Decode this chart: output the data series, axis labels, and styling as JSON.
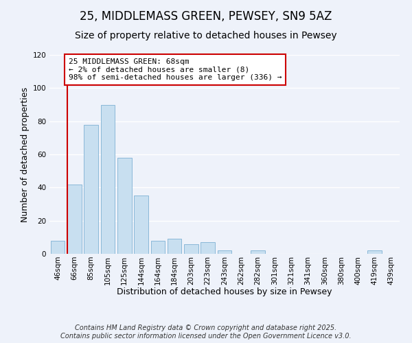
{
  "title": "25, MIDDLEMASS GREEN, PEWSEY, SN9 5AZ",
  "subtitle": "Size of property relative to detached houses in Pewsey",
  "xlabel": "Distribution of detached houses by size in Pewsey",
  "ylabel": "Number of detached properties",
  "categories": [
    "46sqm",
    "66sqm",
    "85sqm",
    "105sqm",
    "125sqm",
    "144sqm",
    "164sqm",
    "184sqm",
    "203sqm",
    "223sqm",
    "243sqm",
    "262sqm",
    "282sqm",
    "301sqm",
    "321sqm",
    "341sqm",
    "360sqm",
    "380sqm",
    "400sqm",
    "419sqm",
    "439sqm"
  ],
  "values": [
    8,
    42,
    78,
    90,
    58,
    35,
    8,
    9,
    6,
    7,
    2,
    0,
    2,
    0,
    0,
    0,
    0,
    0,
    0,
    2,
    0
  ],
  "bar_color": "#c8dff0",
  "bar_edge_color": "#8ab8d8",
  "vline_x_index": 1,
  "vline_color": "#cc0000",
  "ylim": [
    0,
    120
  ],
  "annotation_lines": [
    "25 MIDDLEMASS GREEN: 68sqm",
    "← 2% of detached houses are smaller (8)",
    "98% of semi-detached houses are larger (336) →"
  ],
  "annotation_box_color": "#ffffff",
  "annotation_box_edge_color": "#cc0000",
  "footer_lines": [
    "Contains HM Land Registry data © Crown copyright and database right 2025.",
    "Contains public sector information licensed under the Open Government Licence v3.0."
  ],
  "background_color": "#eef2fa",
  "grid_color": "#ffffff",
  "title_fontsize": 12,
  "subtitle_fontsize": 10,
  "axis_label_fontsize": 9,
  "tick_fontsize": 7.5,
  "annotation_fontsize": 8,
  "footer_fontsize": 7
}
